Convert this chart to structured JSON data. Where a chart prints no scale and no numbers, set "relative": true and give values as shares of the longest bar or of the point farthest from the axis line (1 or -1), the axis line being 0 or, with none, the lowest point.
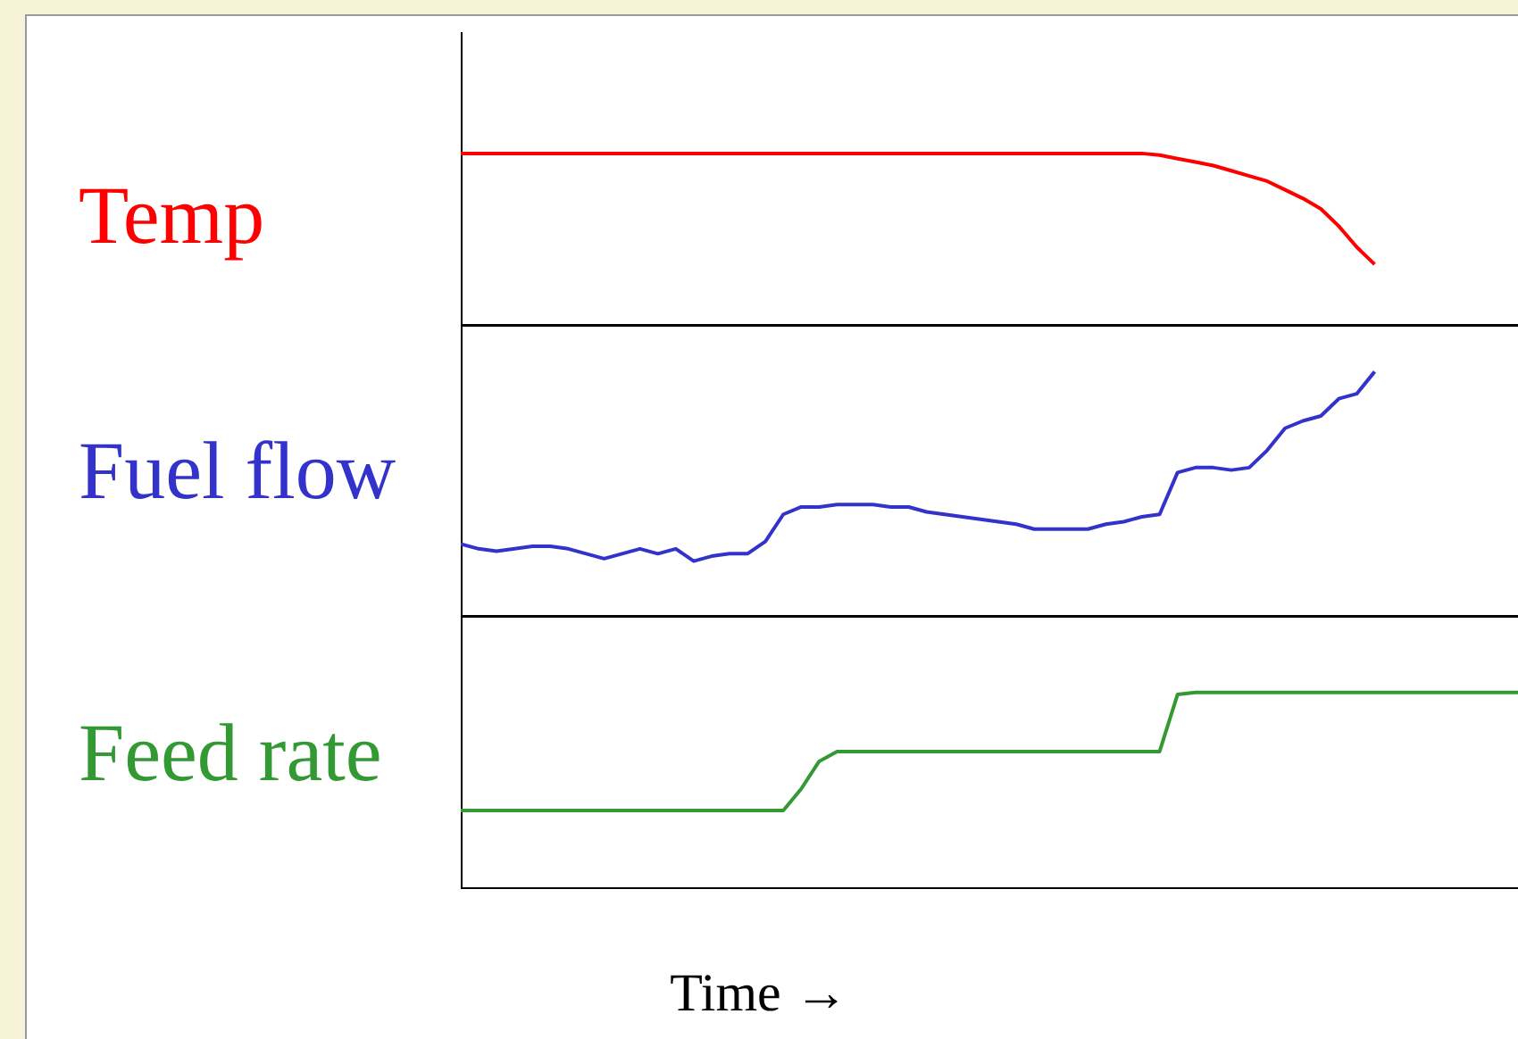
{
  "chart_data": [
    {
      "type": "line",
      "relative": true,
      "ylabel": "Temp",
      "grid": false,
      "legend": false,
      "marker": "none",
      "categories": [
        null,
        null,
        null,
        null,
        null,
        null,
        null,
        null,
        null,
        null,
        null,
        null,
        null,
        null,
        null,
        null,
        null,
        null,
        null,
        null,
        null,
        null,
        null,
        null,
        null,
        null,
        null,
        null,
        null,
        null,
        null,
        null,
        null,
        null,
        null,
        null,
        null,
        null,
        null,
        null,
        null,
        null,
        null,
        null,
        null,
        null,
        null,
        null,
        null,
        null,
        null,
        null,
        null,
        null,
        null,
        null,
        null,
        null,
        null,
        null
      ],
      "series": [
        {
          "color": "#ff0000",
          "values": [
            1,
            1,
            1,
            1,
            1,
            1,
            1,
            1,
            1,
            1,
            1,
            1,
            1,
            1,
            1,
            1,
            1,
            1,
            1,
            1,
            1,
            1,
            1,
            1,
            1,
            1,
            1,
            1,
            1,
            1,
            1,
            1,
            1,
            1,
            1,
            1,
            1,
            1,
            1,
            0.99,
            0.97,
            0.95,
            0.93,
            0.9,
            0.87,
            0.84,
            0.79,
            0.74,
            0.68,
            0.58,
            0.46,
            0.36,
            null,
            null,
            null,
            null,
            null,
            null,
            null,
            null
          ]
        }
      ]
    },
    {
      "type": "line",
      "relative": true,
      "ylabel": "Fuel flow",
      "grid": false,
      "legend": false,
      "marker": "none",
      "categories": [
        null,
        null,
        null,
        null,
        null,
        null,
        null,
        null,
        null,
        null,
        null,
        null,
        null,
        null,
        null,
        null,
        null,
        null,
        null,
        null,
        null,
        null,
        null,
        null,
        null,
        null,
        null,
        null,
        null,
        null,
        null,
        null,
        null,
        null,
        null,
        null,
        null,
        null,
        null,
        null,
        null,
        null,
        null,
        null,
        null,
        null,
        null,
        null,
        null,
        null,
        null,
        null,
        null,
        null,
        null,
        null,
        null,
        null,
        null,
        null
      ],
      "series": [
        {
          "color": "#3333cc",
          "values": [
            0.3,
            0.28,
            0.27,
            0.28,
            0.29,
            0.29,
            0.28,
            0.26,
            0.24,
            0.26,
            0.28,
            0.26,
            0.28,
            0.23,
            0.25,
            0.26,
            0.26,
            0.31,
            0.42,
            0.45,
            0.45,
            0.46,
            0.46,
            0.46,
            0.45,
            0.45,
            0.43,
            0.42,
            0.41,
            0.4,
            0.39,
            0.38,
            0.36,
            0.36,
            0.36,
            0.36,
            0.38,
            0.39,
            0.41,
            0.42,
            0.59,
            0.61,
            0.61,
            0.6,
            0.61,
            0.68,
            0.77,
            0.8,
            0.82,
            0.89,
            0.91,
            1,
            null,
            null,
            null,
            null,
            null,
            null,
            null,
            null
          ]
        }
      ]
    },
    {
      "type": "line",
      "relative": true,
      "ylabel": "Feed rate",
      "xlabel": "Time  →",
      "grid": false,
      "legend": false,
      "marker": "none",
      "categories": [
        null,
        null,
        null,
        null,
        null,
        null,
        null,
        null,
        null,
        null,
        null,
        null,
        null,
        null,
        null,
        null,
        null,
        null,
        null,
        null,
        null,
        null,
        null,
        null,
        null,
        null,
        null,
        null,
        null,
        null,
        null,
        null,
        null,
        null,
        null,
        null,
        null,
        null,
        null,
        null,
        null,
        null,
        null,
        null,
        null,
        null,
        null,
        null,
        null,
        null,
        null,
        null,
        null,
        null,
        null,
        null,
        null,
        null,
        null,
        null
      ],
      "series": [
        {
          "color": "#339933",
          "values": [
            0.4,
            0.4,
            0.4,
            0.4,
            0.4,
            0.4,
            0.4,
            0.4,
            0.4,
            0.4,
            0.4,
            0.4,
            0.4,
            0.4,
            0.4,
            0.4,
            0.4,
            0.4,
            0.4,
            0.51,
            0.65,
            0.7,
            0.7,
            0.7,
            0.7,
            0.7,
            0.7,
            0.7,
            0.7,
            0.7,
            0.7,
            0.7,
            0.7,
            0.7,
            0.7,
            0.7,
            0.7,
            0.7,
            0.7,
            0.7,
            0.99,
            1,
            1,
            1,
            1,
            1,
            1,
            1,
            1,
            1,
            1,
            1,
            1,
            1,
            1,
            1,
            1,
            1,
            1,
            1
          ]
        }
      ]
    }
  ]
}
